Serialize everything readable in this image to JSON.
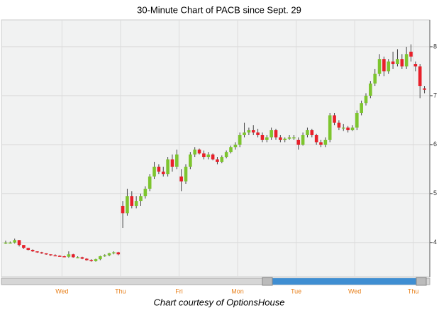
{
  "chart_data": {
    "type": "candlestick",
    "title": "30-Minute Chart of PACB since Sept. 29",
    "caption": "Chart courtesy of OptionsHouse",
    "up_color": "#7dc52e",
    "down_color": "#e8202a",
    "grid": true,
    "ylim": [
      3.3,
      8.55
    ],
    "yticks": [
      4,
      5,
      6,
      7,
      8
    ],
    "categories": [
      null,
      null,
      null,
      null,
      null,
      null,
      null,
      null,
      null,
      null,
      null,
      null,
      null,
      "Wed",
      null,
      null,
      null,
      null,
      null,
      null,
      null,
      null,
      null,
      null,
      null,
      null,
      "Thu",
      null,
      null,
      null,
      null,
      null,
      null,
      null,
      null,
      null,
      null,
      null,
      null,
      "Fri",
      null,
      null,
      null,
      null,
      null,
      null,
      null,
      null,
      null,
      null,
      null,
      null,
      "Mon",
      null,
      null,
      null,
      null,
      null,
      null,
      null,
      null,
      null,
      null,
      null,
      null,
      "Tue",
      null,
      null,
      null,
      null,
      null,
      null,
      null,
      null,
      null,
      null,
      null,
      null,
      "Wed",
      null,
      null,
      null,
      null,
      null,
      null,
      null,
      null,
      null,
      null,
      null,
      null,
      "Thu",
      null,
      null
    ],
    "ohlc": [
      [
        3.99,
        4.04,
        3.97,
        4.0
      ],
      [
        4.0,
        4.02,
        3.98,
        4.0
      ],
      [
        4.0,
        4.08,
        3.98,
        4.05
      ],
      [
        4.05,
        4.05,
        3.92,
        3.95
      ],
      [
        3.95,
        3.95,
        3.87,
        3.89
      ],
      [
        3.89,
        3.89,
        3.84,
        3.85
      ],
      [
        3.85,
        3.86,
        3.81,
        3.82
      ],
      [
        3.82,
        3.82,
        3.79,
        3.8
      ],
      [
        3.8,
        3.81,
        3.77,
        3.78
      ],
      [
        3.78,
        3.78,
        3.75,
        3.76
      ],
      [
        3.76,
        3.76,
        3.73,
        3.74
      ],
      [
        3.74,
        3.76,
        3.72,
        3.73
      ],
      [
        3.73,
        3.74,
        3.71,
        3.72
      ],
      [
        3.72,
        3.73,
        3.7,
        3.71
      ],
      [
        3.71,
        3.82,
        3.69,
        3.76
      ],
      [
        3.76,
        3.77,
        3.69,
        3.7
      ],
      [
        3.7,
        3.72,
        3.68,
        3.7
      ],
      [
        3.7,
        3.71,
        3.66,
        3.67
      ],
      [
        3.67,
        3.68,
        3.63,
        3.64
      ],
      [
        3.64,
        3.66,
        3.61,
        3.62
      ],
      [
        3.62,
        3.67,
        3.61,
        3.66
      ],
      [
        3.66,
        3.73,
        3.64,
        3.72
      ],
      [
        3.72,
        3.76,
        3.71,
        3.74
      ],
      [
        3.74,
        3.79,
        3.72,
        3.78
      ],
      [
        3.78,
        3.82,
        3.76,
        3.8
      ],
      [
        3.8,
        3.81,
        3.74,
        3.76
      ],
      [
        4.75,
        4.85,
        4.3,
        4.6
      ],
      [
        4.6,
        5.1,
        4.55,
        4.95
      ],
      [
        4.95,
        5.05,
        4.7,
        4.75
      ],
      [
        4.75,
        4.95,
        4.7,
        4.85
      ],
      [
        4.85,
        5.0,
        4.75,
        4.95
      ],
      [
        4.95,
        5.15,
        4.9,
        5.1
      ],
      [
        5.1,
        5.4,
        5.05,
        5.35
      ],
      [
        5.35,
        5.65,
        5.3,
        5.55
      ],
      [
        5.55,
        5.6,
        5.4,
        5.45
      ],
      [
        5.45,
        5.55,
        5.35,
        5.4
      ],
      [
        5.4,
        5.75,
        5.35,
        5.7
      ],
      [
        5.7,
        5.8,
        5.45,
        5.55
      ],
      [
        5.55,
        5.9,
        5.5,
        5.8
      ],
      [
        5.35,
        5.5,
        5.05,
        5.25
      ],
      [
        5.25,
        5.6,
        5.2,
        5.55
      ],
      [
        5.55,
        5.85,
        5.5,
        5.8
      ],
      [
        5.8,
        5.95,
        5.75,
        5.9
      ],
      [
        5.9,
        5.92,
        5.8,
        5.82
      ],
      [
        5.82,
        5.88,
        5.7,
        5.75
      ],
      [
        5.75,
        5.85,
        5.7,
        5.8
      ],
      [
        5.8,
        5.82,
        5.68,
        5.7
      ],
      [
        5.7,
        5.75,
        5.6,
        5.65
      ],
      [
        5.65,
        5.78,
        5.62,
        5.75
      ],
      [
        5.75,
        5.88,
        5.72,
        5.85
      ],
      [
        5.85,
        5.98,
        5.82,
        5.95
      ],
      [
        5.95,
        6.05,
        5.9,
        6.0
      ],
      [
        6.0,
        6.25,
        5.95,
        6.2
      ],
      [
        6.2,
        6.45,
        6.15,
        6.25
      ],
      [
        6.25,
        6.35,
        6.2,
        6.3
      ],
      [
        6.3,
        6.4,
        6.2,
        6.25
      ],
      [
        6.25,
        6.32,
        6.15,
        6.2
      ],
      [
        6.2,
        6.25,
        6.05,
        6.1
      ],
      [
        6.1,
        6.2,
        6.05,
        6.15
      ],
      [
        6.15,
        6.35,
        6.1,
        6.3
      ],
      [
        6.3,
        6.32,
        6.1,
        6.15
      ],
      [
        6.15,
        6.2,
        6.05,
        6.1
      ],
      [
        6.1,
        6.15,
        6.05,
        6.12
      ],
      [
        6.12,
        6.2,
        6.1,
        6.15
      ],
      [
        6.15,
        6.2,
        6.1,
        6.15
      ],
      [
        6.1,
        6.15,
        5.9,
        6.0
      ],
      [
        6.0,
        6.25,
        5.98,
        6.2
      ],
      [
        6.2,
        6.35,
        6.15,
        6.3
      ],
      [
        6.3,
        6.32,
        6.15,
        6.2
      ],
      [
        6.2,
        6.22,
        6.0,
        6.05
      ],
      [
        6.05,
        6.1,
        5.95,
        6.0
      ],
      [
        6.0,
        6.15,
        5.95,
        6.1
      ],
      [
        6.1,
        6.65,
        6.05,
        6.6
      ],
      [
        6.6,
        6.65,
        6.4,
        6.45
      ],
      [
        6.45,
        6.5,
        6.3,
        6.35
      ],
      [
        6.35,
        6.42,
        6.28,
        6.35
      ],
      [
        6.35,
        6.38,
        6.25,
        6.3
      ],
      [
        6.3,
        6.4,
        6.28,
        6.35
      ],
      [
        6.35,
        6.7,
        6.3,
        6.65
      ],
      [
        6.65,
        6.9,
        6.6,
        6.85
      ],
      [
        6.85,
        7.05,
        6.8,
        7.0
      ],
      [
        7.0,
        7.3,
        6.95,
        7.25
      ],
      [
        7.25,
        7.55,
        7.2,
        7.45
      ],
      [
        7.45,
        7.85,
        7.4,
        7.75
      ],
      [
        7.75,
        7.8,
        7.4,
        7.5
      ],
      [
        7.5,
        7.75,
        7.45,
        7.7
      ],
      [
        7.7,
        7.9,
        7.55,
        7.65
      ],
      [
        7.65,
        7.95,
        7.6,
        7.75
      ],
      [
        7.75,
        7.85,
        7.55,
        7.6
      ],
      [
        7.6,
        8.0,
        7.55,
        7.85
      ],
      [
        7.9,
        8.05,
        7.7,
        7.8
      ],
      [
        7.65,
        7.7,
        7.5,
        7.6
      ],
      [
        7.6,
        7.65,
        6.95,
        7.2
      ],
      [
        7.15,
        7.2,
        7.05,
        7.12
      ]
    ]
  }
}
